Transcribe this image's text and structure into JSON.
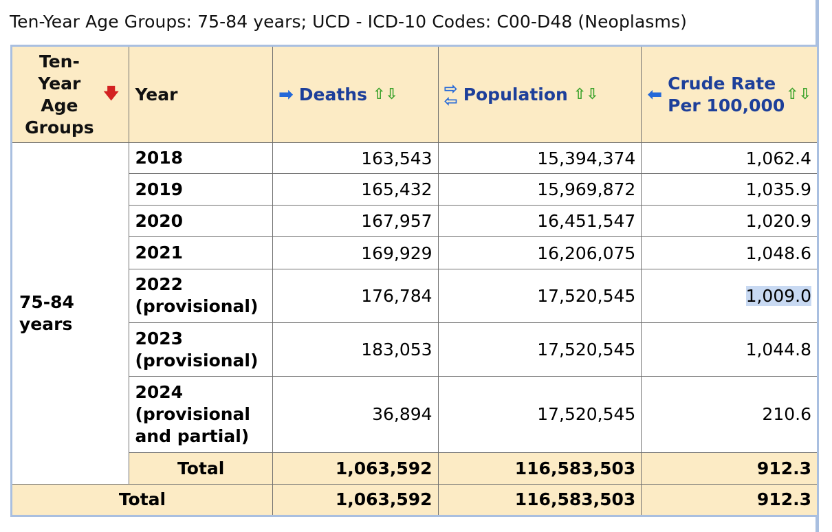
{
  "caption": "Ten-Year Age Groups: 75-84 years; UCD - ICD-10 Codes: C00-D48 (Neoplasms)",
  "headers": {
    "age_group": "Ten-Year Age Groups",
    "year": "Year",
    "deaths": "Deaths",
    "population": "Population",
    "crude_rate": "Crude Rate Per 100,000"
  },
  "icons": {
    "age_sort": "red-down-arrow-icon",
    "column_action": "blue-right-arrow-icon",
    "swap": "blue-swap-arrows-icon",
    "sort": "green-up-down-arrows-icon"
  },
  "age_group_value": "75-84 years",
  "rows": [
    {
      "year": "2018",
      "deaths": "163,543",
      "population": "15,394,374",
      "crude_rate": "1,062.4"
    },
    {
      "year": "2019",
      "deaths": "165,432",
      "population": "15,969,872",
      "crude_rate": "1,035.9"
    },
    {
      "year": "2020",
      "deaths": "167,957",
      "population": "16,451,547",
      "crude_rate": "1,020.9"
    },
    {
      "year": "2021",
      "deaths": "169,929",
      "population": "16,206,075",
      "crude_rate": "1,048.6"
    },
    {
      "year": "2022 (provisional)",
      "deaths": "176,784",
      "population": "17,520,545",
      "crude_rate": "1,009.0"
    },
    {
      "year": "2023 (provisional)",
      "deaths": "183,053",
      "population": "17,520,545",
      "crude_rate": "1,044.8"
    },
    {
      "year": "2024 (provisional and partial)",
      "deaths": "36,894",
      "population": "17,520,545",
      "crude_rate": "210.6"
    }
  ],
  "subtotal": {
    "label": "Total",
    "deaths": "1,063,592",
    "population": "116,583,503",
    "crude_rate": "912.3"
  },
  "grand_total": {
    "label": "Total",
    "deaths": "1,063,592",
    "population": "116,583,503",
    "crude_rate": "912.3"
  },
  "colors": {
    "header_bg": "#fcebc5",
    "link_blue": "#1d3f9a",
    "arrow_blue": "#2468d8",
    "sort_green": "#3aa22a",
    "sort_red": "#d32222",
    "border_blue": "#a9bfe0",
    "selection": "#c8d9f2"
  }
}
